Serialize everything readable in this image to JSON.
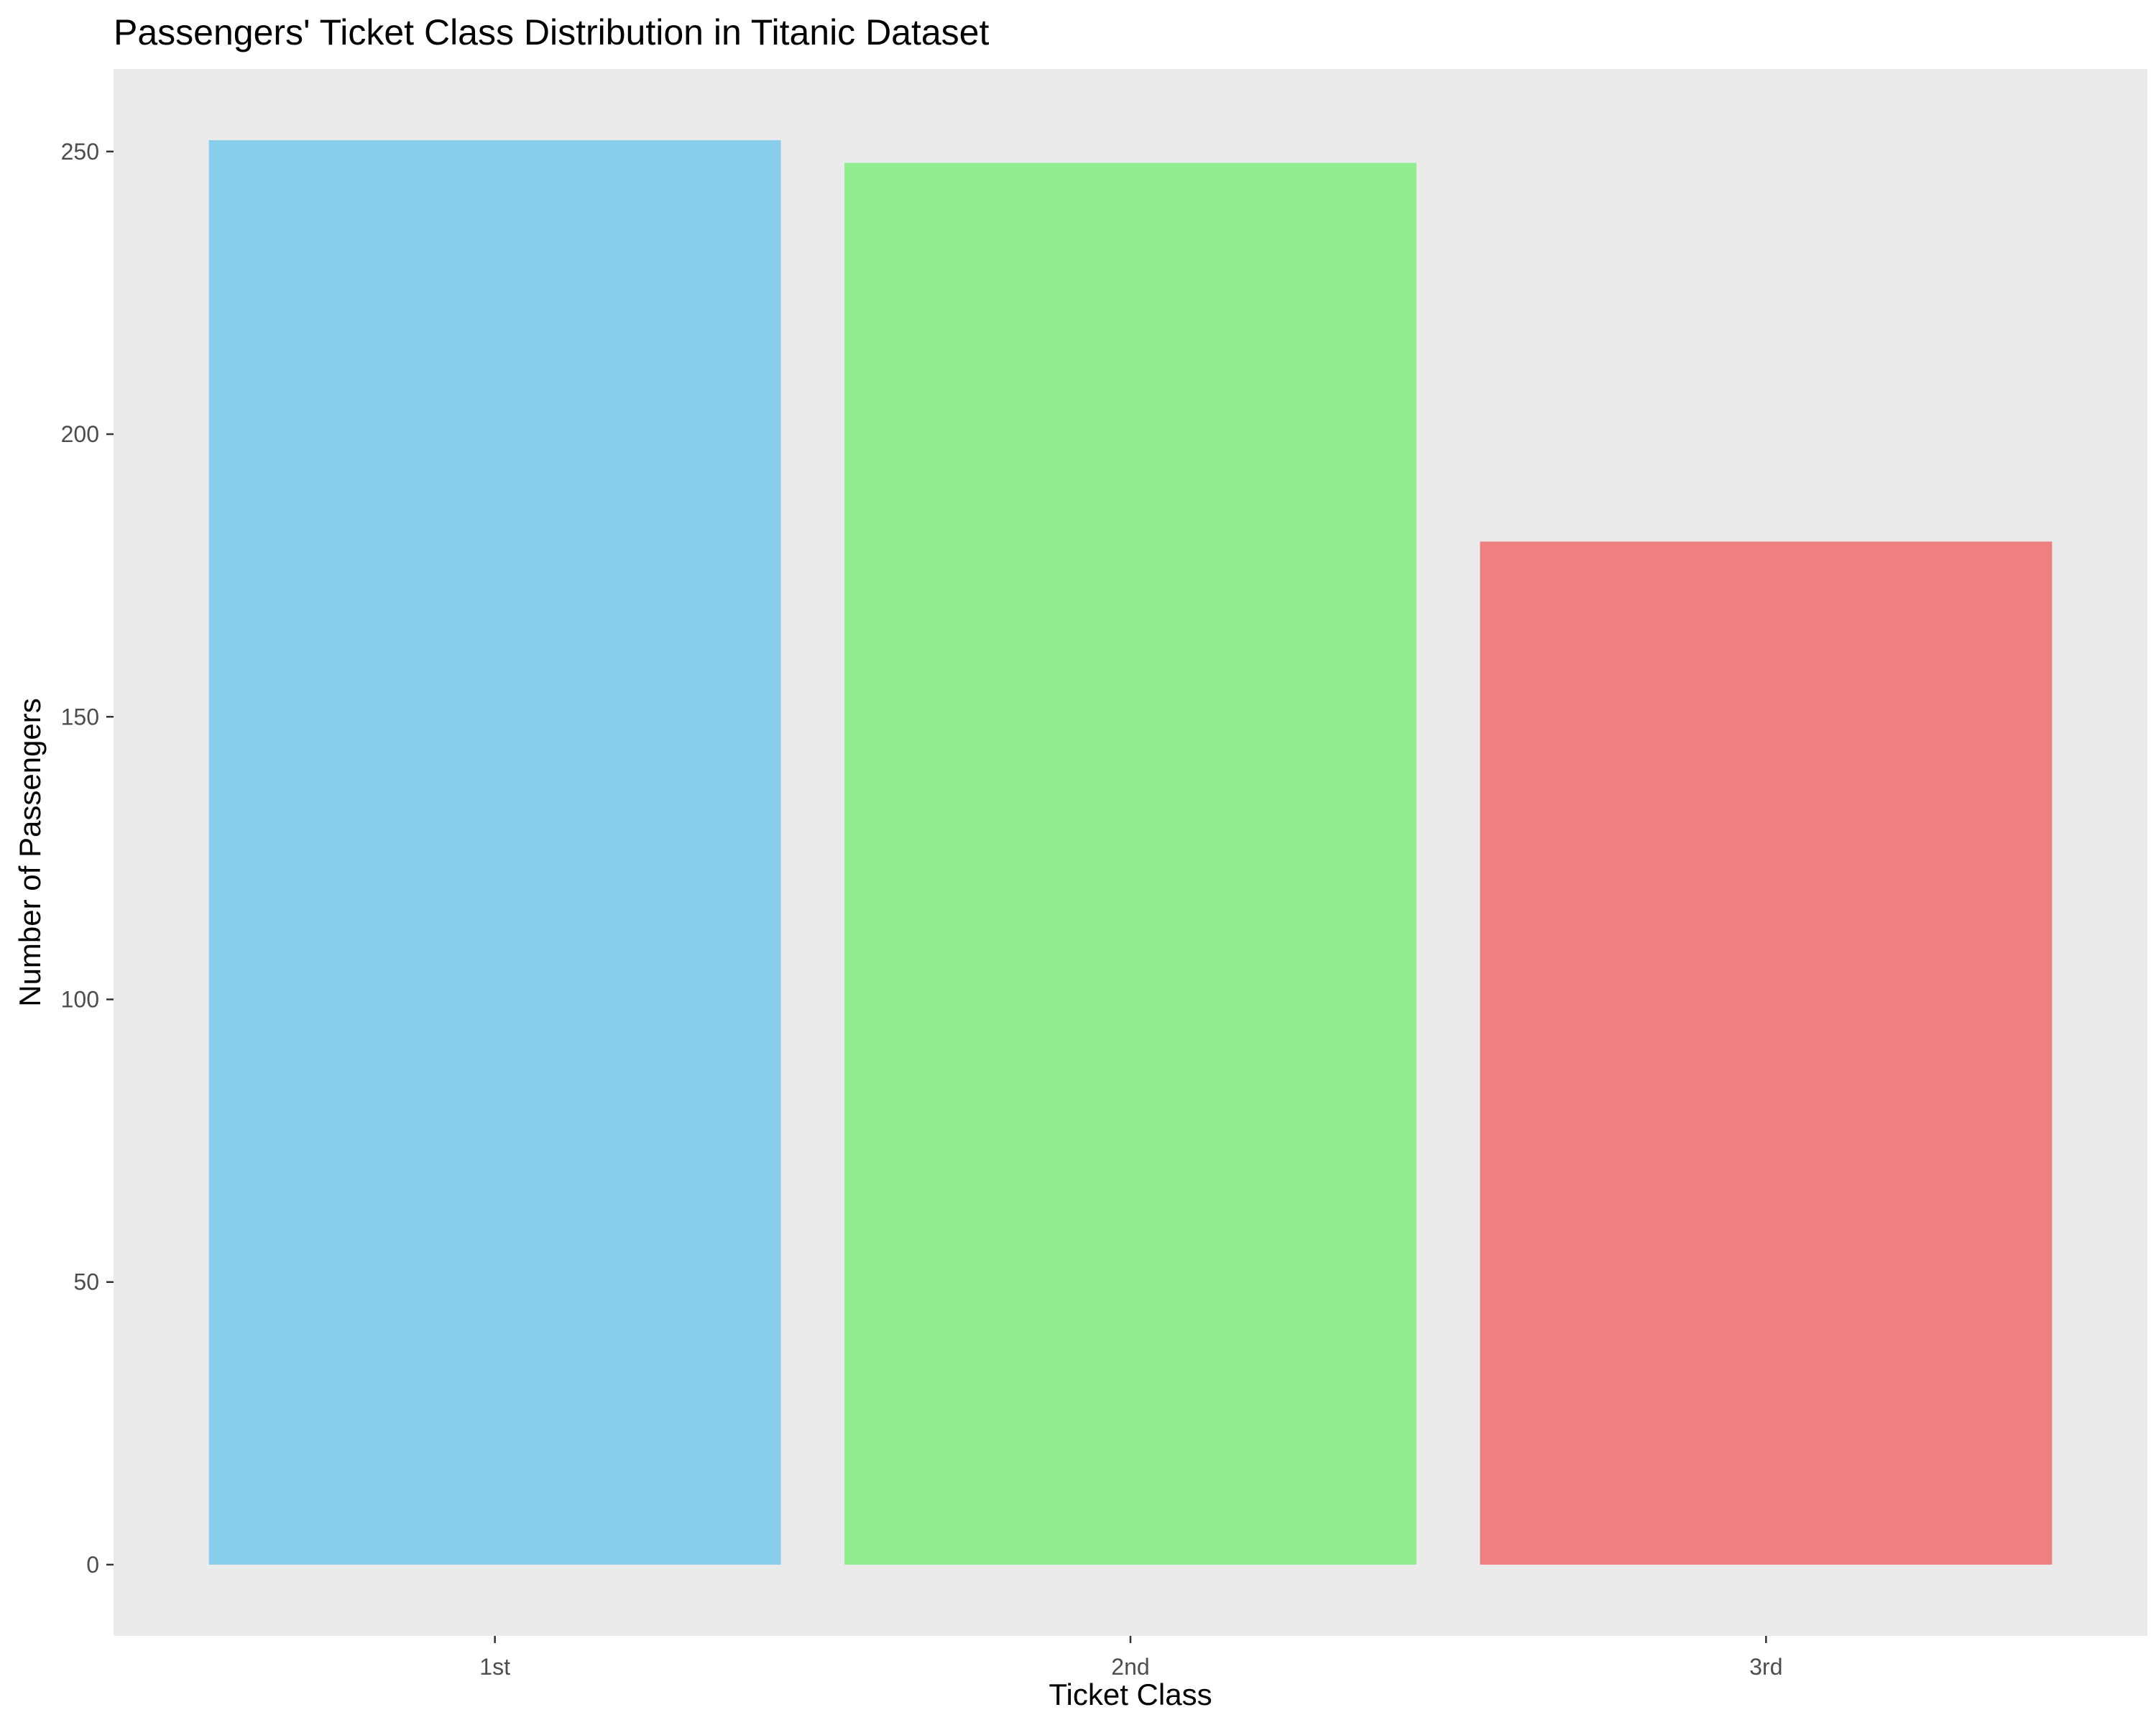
{
  "chart_data": {
    "type": "bar",
    "title": "Passengers' Ticket Class Distribution in Titanic Dataset",
    "xlabel": "Ticket Class",
    "ylabel": "Number of Passengers",
    "categories": [
      "1st",
      "2nd",
      "3rd"
    ],
    "values": [
      252,
      248,
      181
    ],
    "bar_colors": [
      "#87CEEB",
      "#90EE90",
      "#F08080"
    ],
    "ylim": [
      -12.6,
      264.6
    ],
    "yticks": [
      0,
      50,
      100,
      150,
      200,
      250
    ],
    "ytick_labels": [
      "0",
      "50",
      "100",
      "150",
      "200",
      "250"
    ],
    "grid": false,
    "legend": "none",
    "panel_background": "#EBEBEB"
  }
}
